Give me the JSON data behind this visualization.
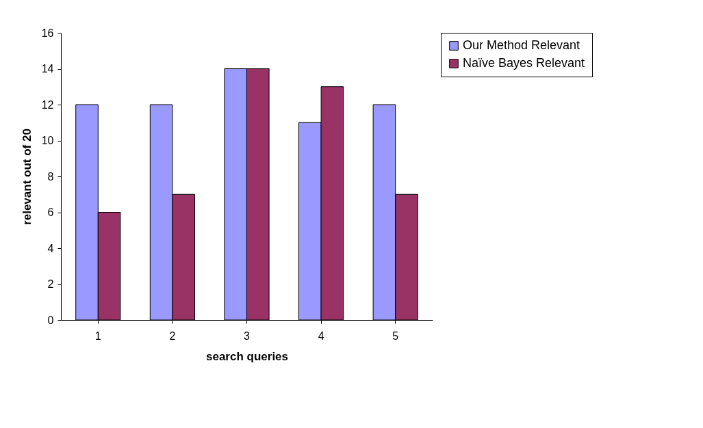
{
  "chart_data": {
    "type": "bar",
    "xlabel": "search queries",
    "ylabel": "relevant out of 20",
    "categories": [
      "1",
      "2",
      "3",
      "4",
      "5"
    ],
    "series": [
      {
        "name": "Our Method Relevant",
        "color": "#9999ff",
        "values": [
          12,
          12,
          14,
          11,
          12
        ]
      },
      {
        "name": "Naïve Bayes Relevant",
        "color": "#993366",
        "values": [
          6,
          7,
          14,
          13,
          7
        ]
      }
    ],
    "ylim": [
      0,
      16
    ],
    "yticks": [
      0,
      2,
      4,
      6,
      8,
      10,
      12,
      14,
      16
    ],
    "grid": false,
    "legend": "top right"
  }
}
